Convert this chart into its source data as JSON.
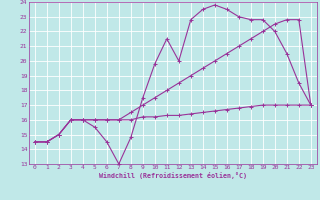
{
  "xlabel": "Windchill (Refroidissement éolien,°C)",
  "xlim": [
    -0.5,
    23.5
  ],
  "ylim": [
    13,
    24
  ],
  "xticks": [
    0,
    1,
    2,
    3,
    4,
    5,
    6,
    7,
    8,
    9,
    10,
    11,
    12,
    13,
    14,
    15,
    16,
    17,
    18,
    19,
    20,
    21,
    22,
    23
  ],
  "yticks": [
    13,
    14,
    15,
    16,
    17,
    18,
    19,
    20,
    21,
    22,
    23,
    24
  ],
  "bg_color": "#c0e8e8",
  "line_color": "#993399",
  "grid_color": "#ffffff",
  "series": [
    [
      14.5,
      14.5,
      15.0,
      16.0,
      16.0,
      15.5,
      14.5,
      13.0,
      14.8,
      17.5,
      19.8,
      21.5,
      20.0,
      22.8,
      23.5,
      23.8,
      23.5,
      23.0,
      22.8,
      22.8,
      22.0,
      20.5,
      18.5,
      17.0
    ],
    [
      14.5,
      14.5,
      15.0,
      16.0,
      16.0,
      16.0,
      16.0,
      16.0,
      16.5,
      17.0,
      17.5,
      18.0,
      18.5,
      19.0,
      19.5,
      20.0,
      20.5,
      21.0,
      21.5,
      22.0,
      22.5,
      22.8,
      22.8,
      17.0
    ],
    [
      14.5,
      14.5,
      15.0,
      16.0,
      16.0,
      16.0,
      16.0,
      16.0,
      16.0,
      16.2,
      16.2,
      16.3,
      16.3,
      16.4,
      16.5,
      16.6,
      16.7,
      16.8,
      16.9,
      17.0,
      17.0,
      17.0,
      17.0,
      17.0
    ]
  ]
}
